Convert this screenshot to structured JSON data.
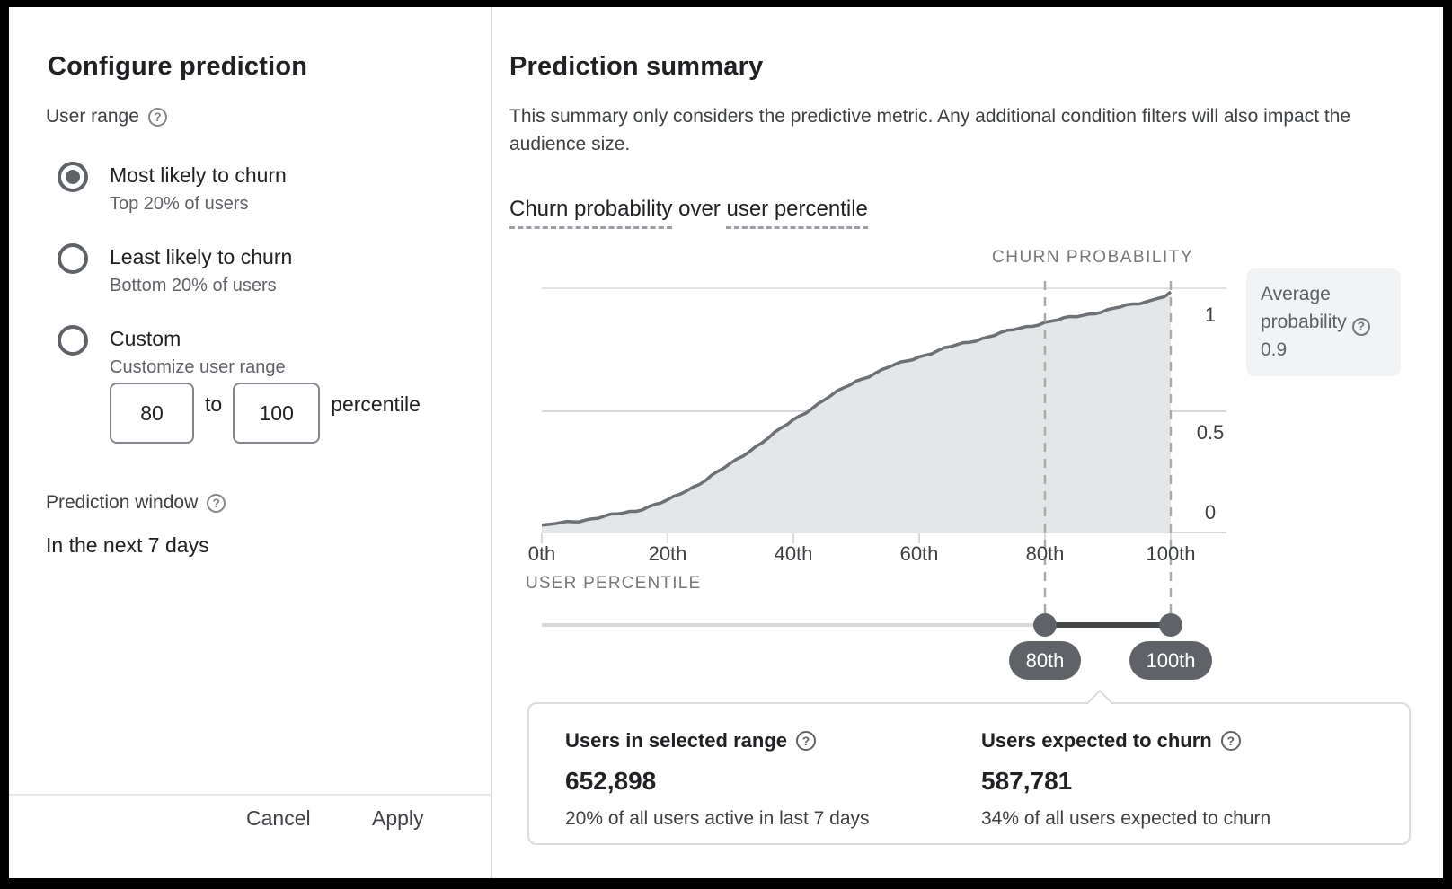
{
  "left_panel": {
    "title": "Configure prediction",
    "user_range_label": "User range",
    "options": [
      {
        "label": "Most likely to churn",
        "description": "Top 20% of users",
        "selected": true
      },
      {
        "label": "Least likely to churn",
        "description": "Bottom 20% of users",
        "selected": false
      },
      {
        "label": "Custom",
        "description": "Customize user range",
        "selected": false
      }
    ],
    "custom_range": {
      "from": "80",
      "to_word": "to",
      "to": "100",
      "unit_label": "percentile"
    },
    "prediction_window_label": "Prediction window",
    "prediction_window_value": "In the next 7 days",
    "cancel_label": "Cancel",
    "apply_label": "Apply"
  },
  "summary": {
    "title": "Prediction summary",
    "description": "This summary only considers the predictive metric. Any additional condition filters will also impact the audience size.",
    "chart_title": {
      "metric": "Churn probability",
      "joiner": " over ",
      "dimension": "user percentile"
    },
    "average_box": {
      "label": "Average probability",
      "value": "0.9"
    },
    "slider": {
      "low_label": "80th",
      "high_label": "100th"
    },
    "stats": [
      {
        "label": "Users in selected range",
        "value": "652,898",
        "caption": "20% of all users active in last 7 days"
      },
      {
        "label": "Users expected to churn",
        "value": "587,781",
        "caption": "34% of all users expected to churn"
      }
    ]
  },
  "chart_data": {
    "type": "area",
    "title": "Churn probability over user percentile",
    "xlabel": "USER PERCENTILE",
    "ylabel": "CHURN PROBABILITY",
    "x_ticks": [
      "0th",
      "20th",
      "40th",
      "60th",
      "80th",
      "100th"
    ],
    "y_ticks": [
      "1",
      "0.5",
      "0"
    ],
    "xlim": [
      0,
      100
    ],
    "ylim": [
      0,
      1
    ],
    "grid": "horizontal",
    "legend": "none",
    "series": [
      {
        "name": "Churn probability",
        "x": [
          0,
          5,
          10,
          15,
          20,
          25,
          30,
          35,
          40,
          45,
          50,
          55,
          60,
          65,
          70,
          75,
          80,
          85,
          90,
          95,
          99,
          100
        ],
        "y": [
          0.03,
          0.045,
          0.065,
          0.09,
          0.13,
          0.2,
          0.28,
          0.37,
          0.46,
          0.545,
          0.62,
          0.675,
          0.72,
          0.76,
          0.795,
          0.83,
          0.86,
          0.885,
          0.91,
          0.94,
          0.965,
          0.985
        ]
      }
    ],
    "selected_range": {
      "from_percentile": 80,
      "to_percentile": 100,
      "average_probability": 0.9
    },
    "colors": {
      "line": "#6d7175",
      "fill": "#e5e6e7",
      "grid": "#d7d9db",
      "dashed_guide": "#a8abae",
      "slider_track": "#d6d8da",
      "slider_selected": "#46494c",
      "handle": "#5f6368"
    }
  }
}
